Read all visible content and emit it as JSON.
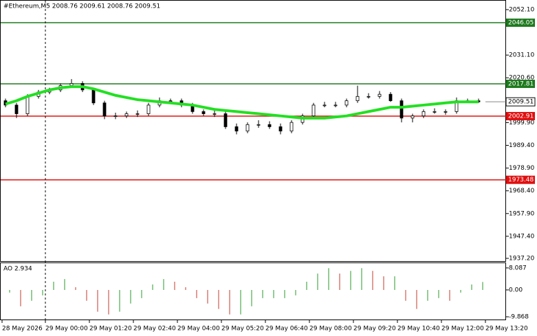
{
  "chart_data": [
    {
      "type": "candlestick",
      "title": "#Ethereum,M5  2008.76 2009.61 2008.76 2009.51",
      "open": [
        2010,
        2008,
        2004,
        2012,
        2014,
        2015,
        2017,
        2018,
        2015,
        2009,
        2003,
        2003,
        2004,
        2004,
        2008,
        2010,
        2010,
        2008,
        2005,
        2004,
        2004,
        1998,
        1996,
        1999,
        1999,
        1998,
        1996,
        2000,
        2003,
        2008,
        2008,
        2008,
        2010,
        2012,
        2012,
        2013,
        2010,
        2002,
        2003,
        2005,
        2005,
        2005,
        2010,
        2010
      ],
      "high": [
        2011,
        2009,
        2013,
        2015,
        2016,
        2018,
        2020,
        2019,
        2016,
        2010,
        2004.5,
        2005,
        2005.5,
        2009,
        2011.5,
        2011,
        2011,
        2009,
        2006,
        2005.5,
        2005,
        1999.5,
        2000,
        2001,
        2000.5,
        1999.5,
        2001,
        2004,
        2009,
        2009.5,
        2009.5,
        2011,
        2017,
        2013.5,
        2014.5,
        2014,
        2011,
        2004,
        2006,
        2006.5,
        2006,
        2011.5,
        2011,
        2011
      ],
      "low": [
        2007,
        2002,
        2003,
        2011,
        2013,
        2014,
        2016,
        2014,
        2008,
        2001.5,
        2001.5,
        2002,
        2002.5,
        2003,
        2007,
        2009,
        2007,
        2004,
        2003,
        2002.5,
        1997,
        1994.5,
        1995,
        1997.5,
        1997,
        1994.5,
        1995,
        1999,
        2002,
        2007,
        2007,
        2007,
        2009,
        2011,
        2011,
        2009.5,
        2000,
        2000,
        2002,
        2004,
        2003.5,
        2004,
        2009,
        2009
      ],
      "close": [
        2008,
        2004,
        2012,
        2014,
        2015,
        2017,
        2018,
        2015,
        2009,
        2003,
        2003,
        2004,
        2004,
        2008,
        2010,
        2010,
        2008,
        2005,
        2004,
        2004,
        1998,
        1996,
        1999,
        1999,
        1998,
        1996,
        2000,
        2003,
        2008,
        2008,
        2008,
        2010,
        2012,
        2012,
        2013,
        2010,
        2002,
        2003,
        2005,
        2005,
        2005,
        2010,
        2010,
        2009.51
      ],
      "ma": {
        "color": "#22e022",
        "values": [
          2008.5,
          2010,
          2012,
          2013.5,
          2015,
          2016,
          2016.5,
          2016.5,
          2015.5,
          2014,
          2012.5,
          2011.5,
          2010.5,
          2010,
          2009.5,
          2009,
          2008.5,
          2008,
          2007,
          2006,
          2005.5,
          2005,
          2004.5,
          2004,
          2003.5,
          2003,
          2002.5,
          2002,
          2002,
          2002,
          2002.5,
          2003,
          2004,
          2005,
          2006,
          2007,
          2007,
          2007.5,
          2008,
          2008.5,
          2009,
          2009.5,
          2009.5,
          2009.5
        ]
      },
      "ylim": [
        1935.93,
        2056.54
      ],
      "yticks": [
        {
          "value": 2052.1,
          "label": "2052.10"
        },
        {
          "value": 2031.1,
          "label": "2031.10"
        },
        {
          "value": 2020.6,
          "label": "2020.60"
        },
        {
          "value": 1999.9,
          "label": "1999.90"
        },
        {
          "value": 1989.4,
          "label": "1989.40"
        },
        {
          "value": 1978.9,
          "label": "1978.90"
        },
        {
          "value": 1968.4,
          "label": "1968.40"
        },
        {
          "value": 1957.9,
          "label": "1957.90"
        },
        {
          "value": 1947.4,
          "label": "1947.40"
        },
        {
          "value": 1937.2,
          "label": "1937.20"
        }
      ],
      "levels": [
        {
          "value": 2046.05,
          "label": "2046.05",
          "color": "#1e7a1e"
        },
        {
          "value": 2017.81,
          "label": "2017.81",
          "color": "#1e7a1e"
        },
        {
          "value": 2002.91,
          "label": "2002.91",
          "color": "#e01010"
        },
        {
          "value": 1973.48,
          "label": "1973.48",
          "color": "#e01010"
        }
      ],
      "current_price": {
        "value": 2009.51,
        "label": "2009.51"
      },
      "xticks": [
        {
          "value": -0.3125,
          "label": "28 May 2026"
        },
        {
          "value": 3.625,
          "label": "29 May 00:00"
        },
        {
          "value": 7.625,
          "label": "29 May 01:20"
        },
        {
          "value": 11.625,
          "label": "29 May 02:40"
        },
        {
          "value": 15.625,
          "label": "29 May 04:00"
        },
        {
          "value": 19.625,
          "label": "29 May 05:20"
        },
        {
          "value": 23.625,
          "label": "29 May 06:40"
        },
        {
          "value": 27.625,
          "label": "29 May 08:00"
        },
        {
          "value": 31.625,
          "label": "29 May 09:20"
        },
        {
          "value": 35.625,
          "label": "29 May 10:40"
        },
        {
          "value": 39.625,
          "label": "29 May 12:00"
        },
        {
          "value": 43.625,
          "label": "29 May 13:20"
        }
      ]
    },
    {
      "type": "bar",
      "title": "AO 2.934",
      "values": [
        -1,
        -6,
        -4,
        -2,
        3,
        4,
        1,
        -4,
        -8,
        -9,
        -8,
        -5,
        -3,
        2,
        4,
        3,
        1,
        -3,
        -5,
        -7,
        -9,
        -9,
        -6,
        -3,
        -3,
        -3,
        -2,
        3,
        6,
        8,
        6,
        7,
        8,
        7,
        5,
        5,
        -4,
        -7,
        -4,
        -3,
        -4,
        -1,
        2,
        2.934
      ],
      "up_color": "#2a9a2a",
      "down_color": "#c0392b",
      "ylim": [
        -10.87,
        9.83
      ],
      "yticks": [
        {
          "value": 8.087,
          "label": "8.087"
        },
        {
          "value": 0,
          "label": "0.00"
        },
        {
          "value": -9.868,
          "label": "-9.868"
        }
      ]
    }
  ]
}
